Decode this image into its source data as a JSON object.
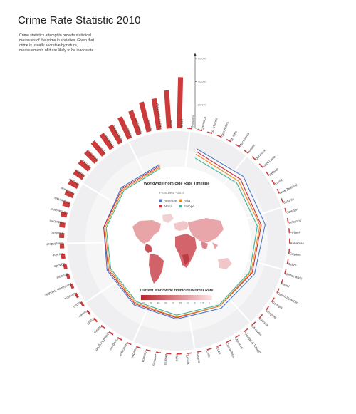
{
  "title": "Crime Rate Statistic 2010",
  "intro": "Crime statistics attempt to provide statistical measures of the crime in societies. Given that crime is usually secretive by nature, measurements of it are likely to be inaccurate.",
  "colors": {
    "bar": "#cc3a3a",
    "ring": "#f0f0f2",
    "americas": "#4a78c8",
    "africa": "#c9313a",
    "asia": "#ee8a1e",
    "europe": "#3fb49b"
  },
  "timeline": {
    "title": "Worldwide Homicide Rate Timeline",
    "range": "From 1960 - 2010",
    "legend": [
      {
        "name": "Americas",
        "color": "#4a78c8"
      },
      {
        "name": "Asia",
        "color": "#ee8a1e"
      },
      {
        "name": "Africa",
        "color": "#c9313a"
      },
      {
        "name": "Europe",
        "color": "#3fb49b"
      }
    ]
  },
  "map_legend": {
    "title": "Current Worldwide Homicide/Murder Rate",
    "ticks": [
      "60",
      "50",
      "40",
      "30",
      "20",
      "15",
      "10",
      "5",
      "2.5",
      "1"
    ]
  },
  "chart_data": {
    "type": "bar",
    "y_ticks": [
      "60,000",
      "40,000",
      "20,000",
      "0"
    ],
    "categories": [
      "Brazil",
      "India",
      "Dem. Rep. Congo",
      "Mexico",
      "Venezuela",
      "Russia",
      "South Africa",
      "Colombia",
      "U.S.A.",
      "Pakistan",
      "Burma",
      "Sudan",
      "Angola",
      "Honduras",
      "Guatemala",
      "El Salvador",
      "Zimbabwe",
      "Thailand",
      "Bangladesh",
      "Ukraine",
      "Uganda",
      "Ecuador",
      "Dominican Republic",
      "Jamaica",
      "Japan",
      "Yemen",
      "Egypt",
      "Bolivia",
      "United Kingdom",
      "Paraguay",
      "Nicaragua",
      "Sweden",
      "Panama",
      "Germany",
      "Belarus",
      "Haiti",
      "Tunisia",
      "Albania",
      "Chile",
      "Cuba",
      "Costa Rica",
      "Morocco",
      "Trinidad & Tobago",
      "Lithuania",
      "Estonia",
      "Uruguay",
      "Georgia",
      "Czech Republic",
      "Israel",
      "Netherlands",
      "Belize",
      "Guyana",
      "Bahamas",
      "Finland",
      "Lebanon",
      "Sweden",
      "Estonia",
      "New Zealand",
      "Latvia",
      "Iceland",
      "Saint Lucia",
      "Denmark",
      "Austria",
      "Macedonia",
      "St. Kitts",
      "Seychelles",
      "St. Vincent",
      "Dominica",
      "Grenada"
    ],
    "values": [
      43909,
      32719,
      27000,
      26200,
      21700,
      20100,
      17400,
      15400,
      14700,
      12600,
      10900,
      9300,
      8700,
      7600,
      6300,
      5300,
      4900,
      4300,
      3800,
      3400,
      3000,
      2700,
      2400,
      2100,
      1800,
      1600,
      1400,
      1300,
      1200,
      1100,
      1000,
      950,
      900,
      850,
      800,
      760,
      720,
      680,
      650,
      620,
      590,
      560,
      530,
      500,
      480,
      460,
      440,
      420,
      400,
      380,
      360,
      340,
      320,
      300,
      280,
      260,
      240,
      220,
      200,
      180,
      160,
      140,
      120,
      100,
      80,
      60,
      50,
      40,
      30
    ],
    "ylim": [
      0,
      60000
    ]
  }
}
